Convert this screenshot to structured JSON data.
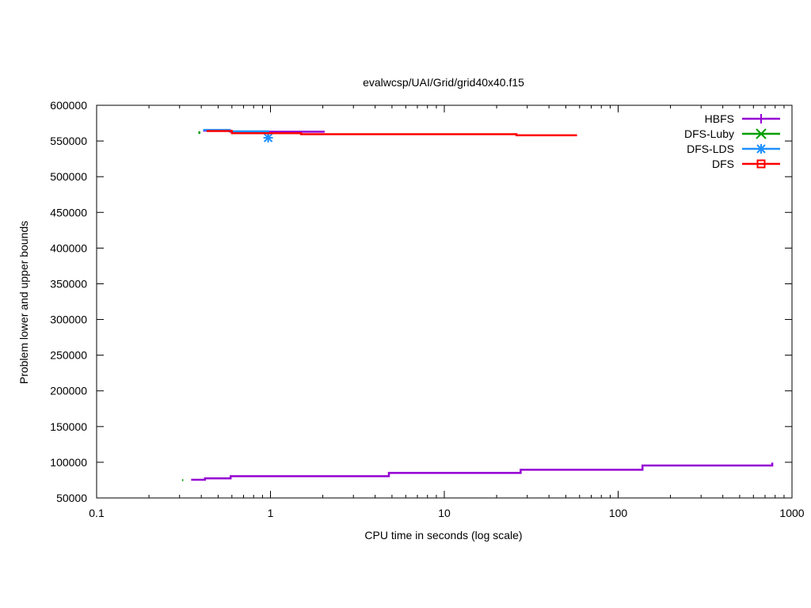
{
  "chart_data": {
    "type": "line",
    "title": "evalwcsp/UAI/Grid/grid40x40.f15",
    "xlabel": "CPU time in seconds (log scale)",
    "ylabel": "Problem lower and upper bounds",
    "x_scale": "log",
    "xlim": [
      0.1,
      1000
    ],
    "ylim": [
      50000,
      600000
    ],
    "x_ticks": [
      {
        "value": 0.1,
        "label": "0.1"
      },
      {
        "value": 1,
        "label": "1"
      },
      {
        "value": 10,
        "label": "10"
      },
      {
        "value": 100,
        "label": "100"
      },
      {
        "value": 1000,
        "label": "1000"
      }
    ],
    "y_ticks": [
      {
        "value": 50000,
        "label": "50000"
      },
      {
        "value": 100000,
        "label": "100000"
      },
      {
        "value": 150000,
        "label": "150000"
      },
      {
        "value": 200000,
        "label": "200000"
      },
      {
        "value": 250000,
        "label": "250000"
      },
      {
        "value": 300000,
        "label": "300000"
      },
      {
        "value": 350000,
        "label": "350000"
      },
      {
        "value": 400000,
        "label": "400000"
      },
      {
        "value": 450000,
        "label": "450000"
      },
      {
        "value": 500000,
        "label": "500000"
      },
      {
        "value": 550000,
        "label": "550000"
      },
      {
        "value": 600000,
        "label": "600000"
      }
    ],
    "grid": false,
    "legend_position": "top-right",
    "series": [
      {
        "name": "HBFS",
        "color": "#9400d3",
        "marker": "plus",
        "lines": [
          [
            [
              0.35,
              75500
            ],
            [
              0.42,
              75500
            ],
            [
              0.42,
              77500
            ],
            [
              0.59,
              77500
            ],
            [
              0.59,
              80500
            ],
            [
              4.8,
              80500
            ],
            [
              4.8,
              85000
            ],
            [
              27.5,
              85000
            ],
            [
              27.5,
              89500
            ],
            [
              138,
              89500
            ],
            [
              138,
              95500
            ],
            [
              770,
              95500
            ],
            [
              770,
              99500
            ]
          ],
          [
            [
              0.41,
              564500
            ],
            [
              0.59,
              564500
            ],
            [
              0.59,
              563000
            ],
            [
              2.05,
              563000
            ]
          ]
        ]
      },
      {
        "name": "DFS-Luby",
        "color": "#009e00",
        "marker": "x",
        "lines": [
          [
            [
              0.39,
              563500
            ],
            [
              0.39,
              560000
            ]
          ],
          [
            [
              0.31,
              75000
            ],
            [
              0.315,
              75000
            ]
          ]
        ]
      },
      {
        "name": "DFS-LDS",
        "color": "#1e90ff",
        "marker": "star",
        "lines": [
          [
            [
              0.41,
              565500
            ],
            [
              0.58,
              565500
            ],
            [
              0.58,
              563500
            ],
            [
              0.97,
              563500
            ],
            [
              0.97,
              553000
            ]
          ]
        ],
        "points": [
          [
            0.97,
            554500
          ]
        ]
      },
      {
        "name": "DFS",
        "color": "#ff0000",
        "marker": "square",
        "lines": [
          [
            [
              0.43,
              564000
            ],
            [
              0.6,
              564000
            ],
            [
              0.6,
              561000
            ],
            [
              1.5,
              561000
            ],
            [
              1.5,
              559500
            ],
            [
              26,
              559500
            ],
            [
              26,
              558000
            ],
            [
              58,
              558000
            ]
          ]
        ]
      }
    ]
  }
}
